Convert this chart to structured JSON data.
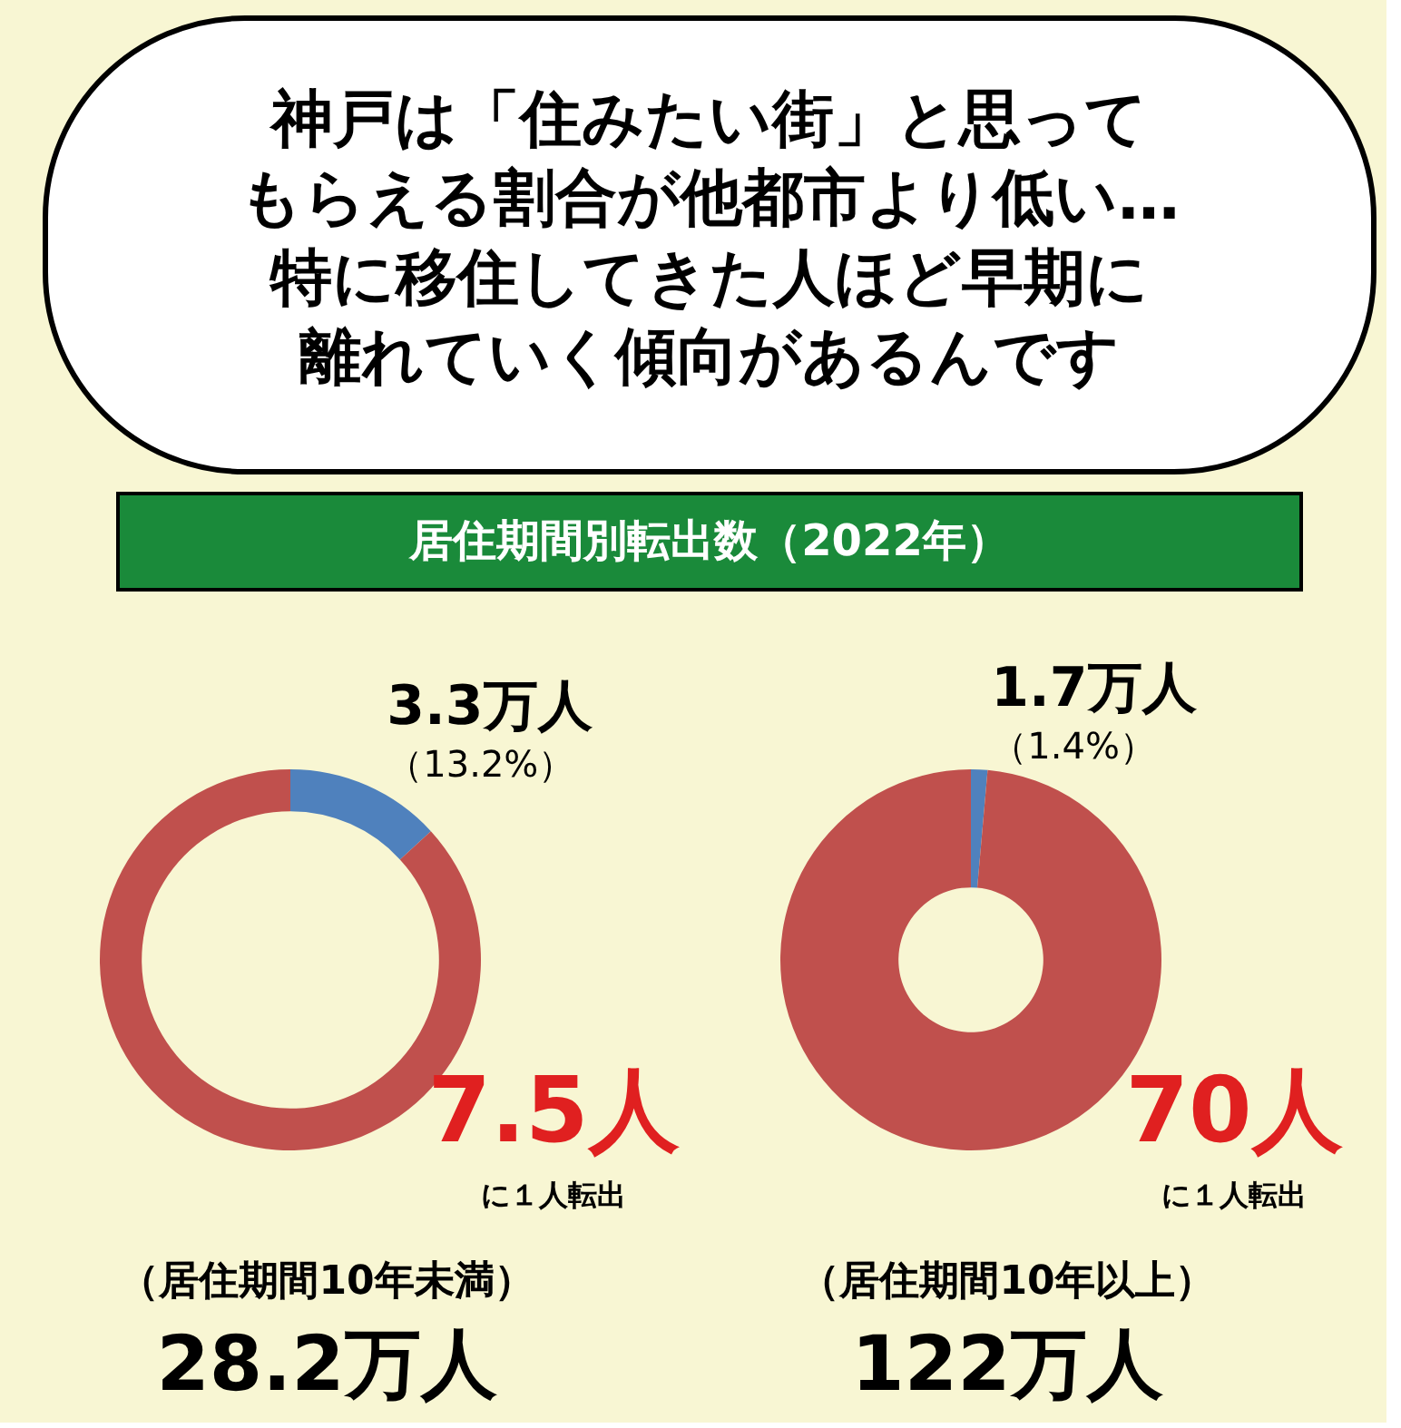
{
  "chart_data": [
    {
      "type": "other",
      "annotations": [
        "神戸は「住みたい街」と思って",
        "もらえる割合が他都市より低い…",
        "特に移住してきた人ほど早期に",
        "離れていく傾向があるんです"
      ]
    },
    {
      "type": "donut",
      "title": "居住期間別転出数（2022年）",
      "categories": [
        null,
        null
      ],
      "values": [
        13.2,
        86.8
      ],
      "colors": [
        "#4f81bd",
        "#c0504d"
      ],
      "value_labels": [
        "（13.2%）",
        null
      ],
      "annotations": [
        "3.3万人",
        "7.5人",
        "に１人転出",
        "（居住期間10年未満）",
        "28.2万人"
      ]
    },
    {
      "type": "donut",
      "categories": [
        null,
        null
      ],
      "values": [
        1.4,
        98.6
      ],
      "colors": [
        "#4f81bd",
        "#c0504d"
      ],
      "value_labels": [
        "（1.4%）",
        null
      ],
      "annotations": [
        "1.7万人",
        "70人",
        "に１人転出",
        "（居住期間10年以上）",
        "122万人"
      ]
    }
  ]
}
